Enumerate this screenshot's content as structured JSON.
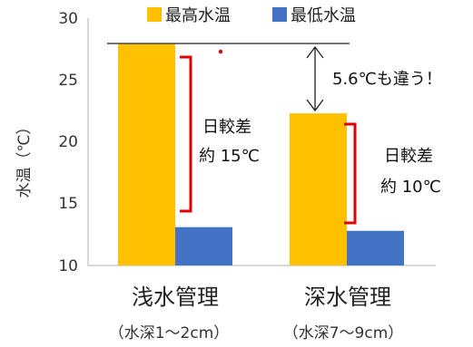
{
  "chart_data": {
    "type": "bar",
    "title": "",
    "xlabel": "",
    "ylabel": "水温（℃）",
    "ylim": [
      10,
      30
    ],
    "yticks": [
      10,
      15,
      20,
      25,
      30
    ],
    "grid": false,
    "legend_position": "top",
    "categories": [
      "浅水管理",
      "深水管理"
    ],
    "category_notes": [
      "（水深1～2cm）",
      "（水深7～9cm）"
    ],
    "series": [
      {
        "name": "最高水温",
        "color": "#FFC000",
        "values": [
          27.9,
          22.3
        ]
      },
      {
        "name": "最低水温",
        "color": "#4472C4",
        "values": [
          13.1,
          12.8
        ]
      }
    ],
    "annotations": {
      "difference_text": "5.6℃も違う！",
      "range_label": "日較差",
      "range_values": [
        "約 15℃",
        "約 10℃"
      ],
      "bracket_color": "#E00000"
    }
  }
}
